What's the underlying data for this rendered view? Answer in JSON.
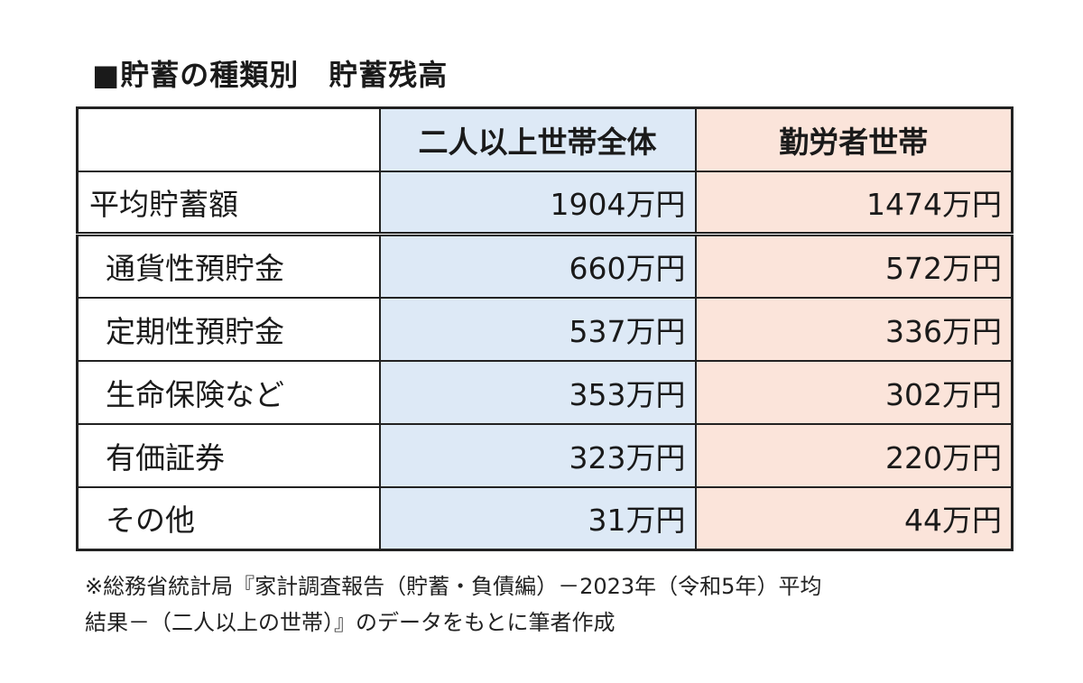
{
  "title": "■貯蓄の種類別　貯蓄残高",
  "table": {
    "headers": [
      "",
      "二人以上世帯全体",
      "勤労者世帯"
    ],
    "total_row": {
      "label": "平均貯蓄額",
      "all_households": "1904万円",
      "worker_households": "1474万円"
    },
    "rows": [
      {
        "label": "通貨性預貯金",
        "all_households": "660万円",
        "worker_households": "572万円"
      },
      {
        "label": "定期性預貯金",
        "all_households": "537万円",
        "worker_households": "336万円"
      },
      {
        "label": "生命保険など",
        "all_households": "353万円",
        "worker_households": "302万円"
      },
      {
        "label": "有価証券",
        "all_households": "323万円",
        "worker_households": "220万円"
      },
      {
        "label": "その他",
        "all_households": "31万円",
        "worker_households": "44万円"
      }
    ]
  },
  "source_note": {
    "line1": "※総務省統計局『家計調査報告（貯蓄・負債編）－2023年（令和5年）平均",
    "line2": "結果－（二人以上の世帯）』のデータをもとに筆者作成"
  },
  "colors": {
    "all_households_bg": "#dde9f6",
    "worker_households_bg": "#fbe4da",
    "border": "#222222"
  }
}
